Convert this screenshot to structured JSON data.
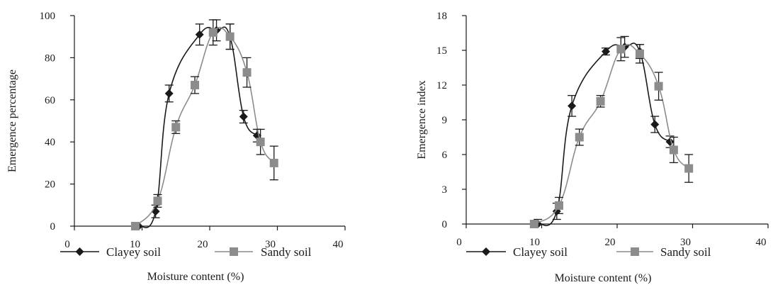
{
  "chart_data": [
    {
      "type": "line",
      "title": "",
      "xlabel": "Moisture content (%)",
      "ylabel": "Emergence percentage",
      "xlim": [
        0,
        40
      ],
      "ylim": [
        0,
        100
      ],
      "xticks": [
        0,
        10,
        20,
        30,
        40
      ],
      "yticks": [
        0,
        20,
        40,
        60,
        80,
        100
      ],
      "grid": false,
      "legend_position": "bottom",
      "series": [
        {
          "name": "Clayey soil",
          "marker": "diamond",
          "color": "#1a1a1a",
          "x": [
            9.5,
            12,
            14,
            18.5,
            21,
            23,
            25,
            27
          ],
          "y": [
            0,
            7,
            63,
            91,
            93,
            90,
            52,
            43
          ],
          "err": [
            0,
            3,
            4,
            5,
            5,
            6,
            3,
            3
          ]
        },
        {
          "name": "Sandy soil",
          "marker": "square",
          "color": "#8c8c8c",
          "x": [
            9,
            12.3,
            15,
            17.8,
            20.5,
            23,
            25.5,
            27.5,
            29.5
          ],
          "y": [
            0,
            12,
            47,
            67,
            92,
            90,
            73,
            40,
            30
          ],
          "err": [
            0,
            3,
            3,
            4,
            6,
            6,
            7,
            6,
            8
          ]
        }
      ]
    },
    {
      "type": "line",
      "title": "",
      "xlabel": "Moisture content (%)",
      "ylabel": "Emergence index",
      "xlim": [
        0,
        40
      ],
      "ylim": [
        0,
        18
      ],
      "xticks": [
        0,
        10,
        20,
        30,
        40
      ],
      "yticks": [
        0,
        3,
        6,
        9,
        12,
        15,
        18
      ],
      "grid": false,
      "legend_position": "bottom",
      "series": [
        {
          "name": "Clayey soil",
          "marker": "diamond",
          "color": "#1a1a1a",
          "x": [
            9.5,
            12,
            14,
            18.5,
            21,
            23,
            25,
            27
          ],
          "y": [
            0,
            1.1,
            10.2,
            14.9,
            15.3,
            14.9,
            8.6,
            7.1
          ],
          "err": [
            0.4,
            0.7,
            0.9,
            0.3,
            0.9,
            0.6,
            0.7,
            0.5
          ]
        },
        {
          "name": "Sandy soil",
          "marker": "square",
          "color": "#8c8c8c",
          "x": [
            9,
            12.3,
            15,
            17.8,
            20.5,
            23,
            25.5,
            27.5,
            29.5
          ],
          "y": [
            0,
            1.6,
            7.5,
            10.6,
            15.1,
            14.7,
            11.9,
            6.4,
            4.8
          ],
          "err": [
            0,
            0.7,
            0.7,
            0.5,
            1.0,
            0.8,
            1.2,
            1.1,
            1.2
          ]
        }
      ]
    }
  ]
}
